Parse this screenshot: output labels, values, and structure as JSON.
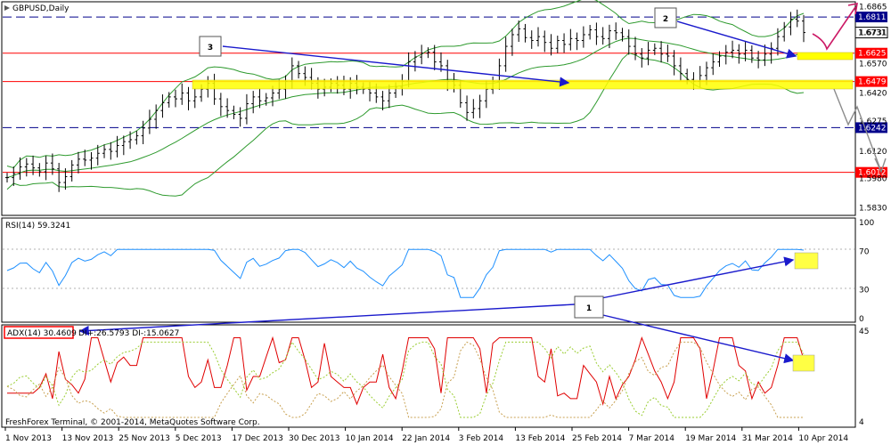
{
  "chart_data": {
    "type": "candlestick",
    "symbol_label": "GBPUSD,Daily",
    "copyright": "FreshForex Terminal, © 2001-2014, MetaQuotes Software Corp.",
    "x_labels": [
      "1 Nov 2013",
      "13 Nov 2013",
      "25 Nov 2013",
      "5 Dec 2013",
      "17 Dec 2013",
      "30 Dec 2013",
      "10 Jan 2014",
      "22 Jan 2014",
      "3 Feb 2014",
      "13 Feb 2014",
      "25 Feb 2014",
      "7 Mar 2014",
      "19 Mar 2014",
      "31 Mar 2014",
      "10 Apr 2014"
    ],
    "price_panel": {
      "ylim": [
        1.58,
        1.688
      ],
      "ticks": [
        "1.6865",
        "1.6731",
        "1.6570",
        "1.6420",
        "1.6275",
        "1.6120",
        "1.5980",
        "1.5830"
      ],
      "levels": [
        {
          "value": 1.6811,
          "label": "1.6811",
          "style": "dashed",
          "color": "#00008b"
        },
        {
          "value": 1.6625,
          "label": "1.6625",
          "style": "solid",
          "color": "#ff0000"
        },
        {
          "value": 1.6479,
          "label": "1.6479",
          "style": "solid",
          "color": "#ff0000"
        },
        {
          "value": 1.6242,
          "label": "1.6242",
          "style": "dashed",
          "color": "#00008b"
        },
        {
          "value": 1.6012,
          "label": "1.6012",
          "style": "solid",
          "color": "#ff0000"
        }
      ],
      "current_price": {
        "value": 1.6731,
        "label": "1.6731"
      },
      "annotations": [
        "1",
        "2",
        "3"
      ]
    },
    "rsi_panel": {
      "label": "RSI(14) 59.3241",
      "ticks": [
        "100",
        "70",
        "30",
        "0"
      ],
      "ylim": [
        0,
        100
      ],
      "levels": [
        70,
        30
      ]
    },
    "adx_panel": {
      "label_adx": "ADX(14) 30.4609",
      "label_di": "DI+:26.5793  DI-:15.0627",
      "ticks": [
        "45",
        "4"
      ],
      "ylim": [
        4,
        45
      ]
    },
    "closes": [
      1.5985,
      1.6005,
      1.604,
      1.6055,
      1.6035,
      1.6015,
      1.606,
      1.603,
      1.596,
      1.599,
      1.605,
      1.608,
      1.6075,
      1.6085,
      1.611,
      1.613,
      1.612,
      1.615,
      1.617,
      1.618,
      1.62,
      1.624,
      1.6285,
      1.633,
      1.637,
      1.64,
      1.639,
      1.642,
      1.638,
      1.64,
      1.644,
      1.647,
      1.639,
      1.635,
      1.633,
      1.631,
      1.629,
      1.6365,
      1.64,
      1.638,
      1.6395,
      1.642,
      1.644,
      1.648,
      1.656,
      1.652,
      1.65,
      1.647,
      1.644,
      1.645,
      1.647,
      1.646,
      1.644,
      1.647,
      1.645,
      1.644,
      1.642,
      1.64,
      1.638,
      1.642,
      1.645,
      1.648,
      1.658,
      1.6605,
      1.6625,
      1.663,
      1.658,
      1.656,
      1.648,
      1.646,
      1.637,
      1.632,
      1.634,
      1.638,
      1.644,
      1.648,
      1.656,
      1.666,
      1.672,
      1.675,
      1.6705,
      1.669,
      1.671,
      1.668,
      1.665,
      1.669,
      1.667,
      1.67,
      1.669,
      1.672,
      1.6745,
      1.671,
      1.67,
      1.674,
      1.673,
      1.671,
      1.666,
      1.662,
      1.66,
      1.664,
      1.665,
      1.662,
      1.661,
      1.656,
      1.652,
      1.649,
      1.648,
      1.651,
      1.655,
      1.658,
      1.661,
      1.663,
      1.664,
      1.662,
      1.664,
      1.66,
      1.659,
      1.662,
      1.665,
      1.671,
      1.676,
      1.68,
      1.679,
      1.6731
    ]
  }
}
